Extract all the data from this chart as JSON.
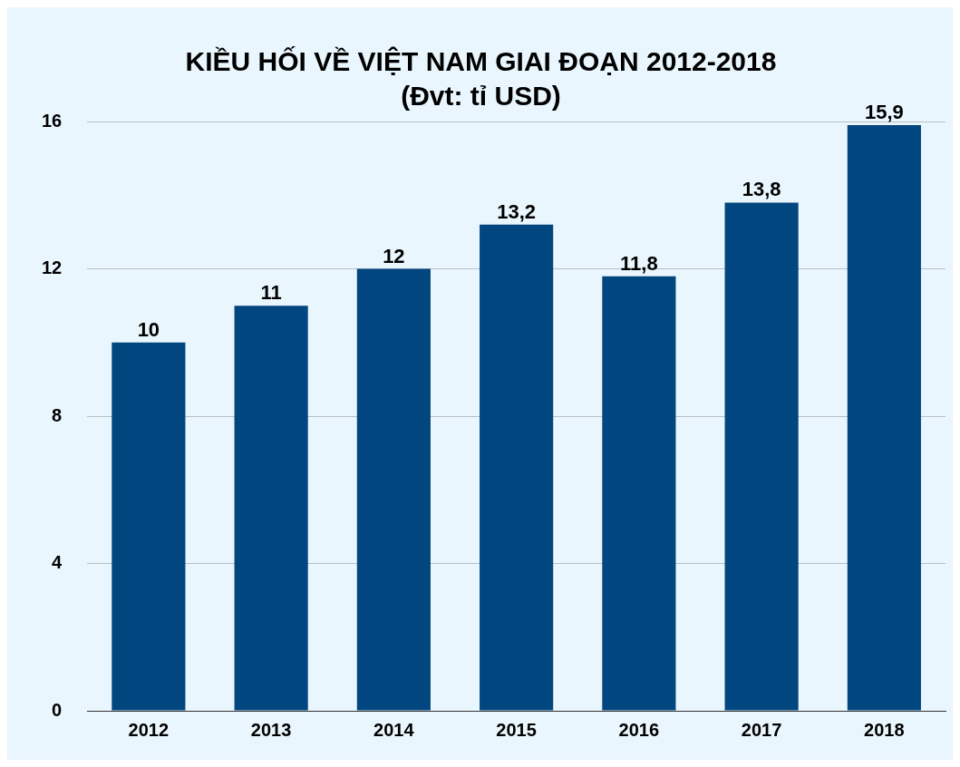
{
  "chart_data": {
    "type": "bar",
    "title": "KIỀU HỐI VỀ VIỆT NAM GIAI ĐOẠN 2012-2018",
    "subtitle": "(Đvt: tỉ USD)",
    "categories": [
      "2012",
      "2013",
      "2014",
      "2015",
      "2016",
      "2017",
      "2018"
    ],
    "values": [
      10,
      11,
      12,
      13.2,
      11.8,
      13.8,
      15.9
    ],
    "value_labels": [
      "10",
      "11",
      "12",
      "13,2",
      "11,8",
      "13,8",
      "15,9"
    ],
    "color": "#02467f",
    "ylim": [
      0,
      16
    ],
    "yticks": [
      0,
      4,
      8,
      12,
      16
    ],
    "grid": "y"
  }
}
